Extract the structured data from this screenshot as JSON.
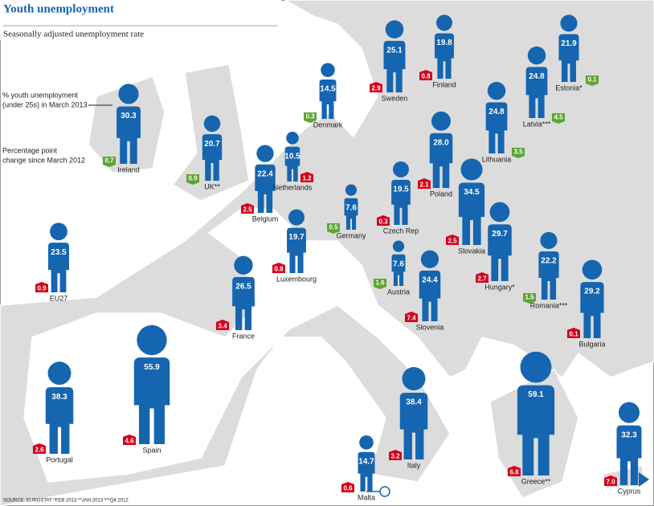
{
  "header": {
    "title": "Youth unemployment",
    "subtitle": "Seasonally adjusted unemployment rate"
  },
  "legend": {
    "rate": [
      "% youth unemployment",
      "(under 25s) in March 2013"
    ],
    "change": [
      "Percentage point",
      "change since March 2012"
    ]
  },
  "figure_color": "#1565b0",
  "badge_colors": {
    "up": "#d6001c",
    "down": "#5ba532"
  },
  "countries": [
    {
      "name": "Ireland",
      "rate": "30.3",
      "change": "0.7",
      "trend": "down"
    },
    {
      "name": "UK**",
      "rate": "20.7",
      "change": "0.9",
      "trend": "down"
    },
    {
      "name": "Belgium",
      "rate": "22.4",
      "change": "2.5",
      "trend": "up"
    },
    {
      "name": "Netherlands",
      "rate": "10.5",
      "change": "1.2",
      "trend": "up"
    },
    {
      "name": "Denmark",
      "rate": "14.5",
      "change": "0.3",
      "trend": "down"
    },
    {
      "name": "Sweden",
      "rate": "25.1",
      "change": "2.9",
      "trend": "up"
    },
    {
      "name": "Finland",
      "rate": "19.8",
      "change": "0.8",
      "trend": "up"
    },
    {
      "name": "Estonia*",
      "rate": "21.9",
      "change": "0.1",
      "trend": "down"
    },
    {
      "name": "Latvia***",
      "rate": "24.8",
      "change": "4.5",
      "trend": "down"
    },
    {
      "name": "Lithuania",
      "rate": "24.8",
      "change": "3.5",
      "trend": "down"
    },
    {
      "name": "Poland",
      "rate": "28.0",
      "change": "2.1",
      "trend": "up"
    },
    {
      "name": "Germany",
      "rate": "7.6",
      "change": "0.5",
      "trend": "down"
    },
    {
      "name": "Czech Rep",
      "rate": "19.5",
      "change": "0.3",
      "trend": "up"
    },
    {
      "name": "Slovakia",
      "rate": "34.5",
      "change": "2.5",
      "trend": "up"
    },
    {
      "name": "Luxembourg",
      "rate": "19.7",
      "change": "0.8",
      "trend": "up"
    },
    {
      "name": "France",
      "rate": "26.5",
      "change": "3.4",
      "trend": "up"
    },
    {
      "name": "Austria",
      "rate": "7.6",
      "change": "1.6",
      "trend": "down"
    },
    {
      "name": "Slovenia",
      "rate": "24.4",
      "change": "7.4",
      "trend": "up"
    },
    {
      "name": "Hungary*",
      "rate": "29.7",
      "change": "2.7",
      "trend": "up"
    },
    {
      "name": "Romania***",
      "rate": "22.2",
      "change": "1.5",
      "trend": "down"
    },
    {
      "name": "Bulgaria",
      "rate": "29.2",
      "change": "0.1",
      "trend": "up"
    },
    {
      "name": "EU27",
      "rate": "23.5",
      "change": "0.9",
      "trend": "up"
    },
    {
      "name": "Portugal",
      "rate": "38.3",
      "change": "2.6",
      "trend": "up"
    },
    {
      "name": "Spain",
      "rate": "55.9",
      "change": "4.6",
      "trend": "up"
    },
    {
      "name": "Malta",
      "rate": "14.7",
      "change": "0.6",
      "trend": "up"
    },
    {
      "name": "Italy",
      "rate": "38.4",
      "change": "3.2",
      "trend": "up"
    },
    {
      "name": "Greece**",
      "rate": "59.1",
      "change": "6.8",
      "trend": "up"
    },
    {
      "name": "Cyprus",
      "rate": "32.3",
      "change": "7.0",
      "trend": "up"
    }
  ],
  "source": "SOURCE: EUROSTAT   *FEB 2013   **JAN 2013   ***Q4 2012"
}
